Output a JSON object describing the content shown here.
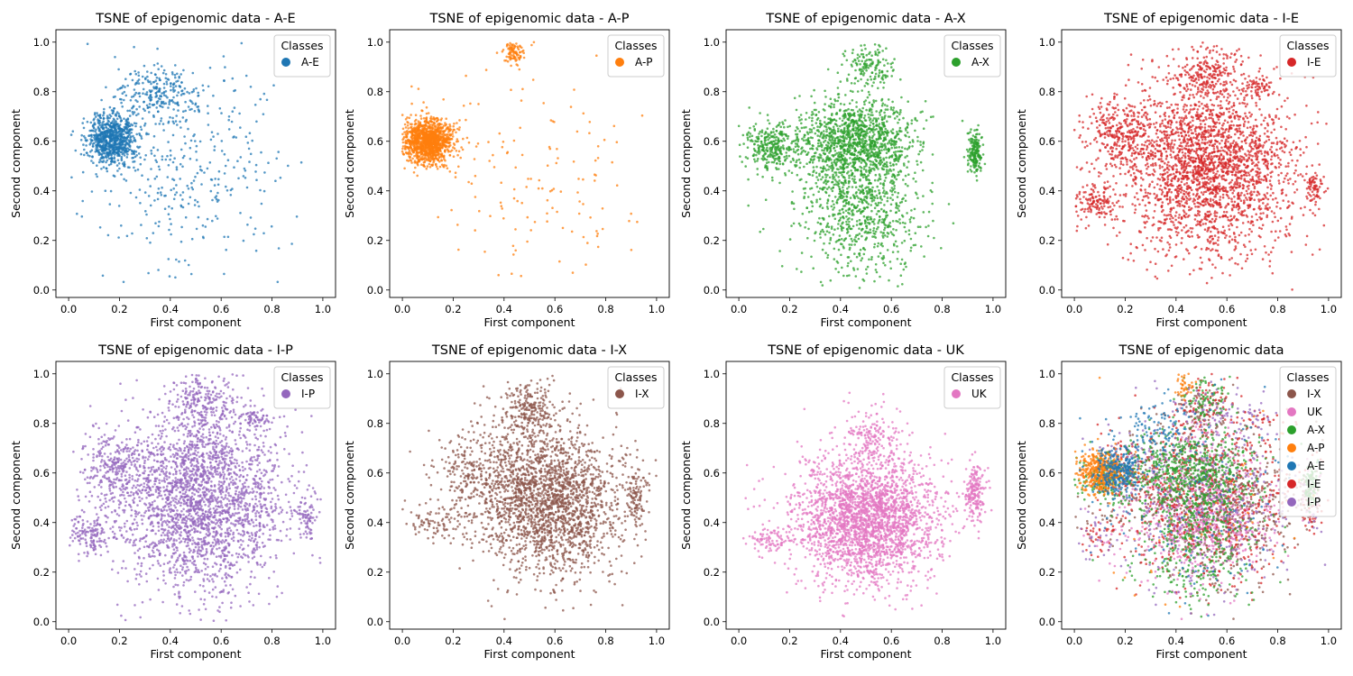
{
  "colors": {
    "A-E": "#1f77b4",
    "A-P": "#ff7f0e",
    "A-X": "#2ca02c",
    "I-E": "#d62728",
    "I-P": "#9467bd",
    "I-X": "#8c564b",
    "UK": "#e377c2"
  },
  "chart_data": [
    {
      "type": "scatter",
      "title": "TSNE of epigenomic data - A-E",
      "xlabel": "First component",
      "ylabel": "Second component",
      "xlim": [
        -0.05,
        1.05
      ],
      "ylim": [
        -0.03,
        1.05
      ],
      "xticks": [
        "0.0",
        "0.2",
        "0.4",
        "0.6",
        "0.8",
        "1.0"
      ],
      "yticks": [
        "0.0",
        "0.2",
        "0.4",
        "0.6",
        "0.8",
        "1.0"
      ],
      "legend": {
        "title": "Classes",
        "position": "top-right",
        "entries": [
          "A-E"
        ]
      },
      "series": [
        {
          "name": "A-E",
          "shape": "ae",
          "density": 1400
        }
      ]
    },
    {
      "type": "scatter",
      "title": "TSNE of epigenomic data - A-P",
      "xlabel": "First component",
      "ylabel": "Second component",
      "xlim": [
        -0.05,
        1.05
      ],
      "ylim": [
        -0.03,
        1.05
      ],
      "xticks": [
        "0.0",
        "0.2",
        "0.4",
        "0.6",
        "0.8",
        "1.0"
      ],
      "yticks": [
        "0.0",
        "0.2",
        "0.4",
        "0.6",
        "0.8",
        "1.0"
      ],
      "legend": {
        "title": "Classes",
        "position": "top-right",
        "entries": [
          "A-P"
        ]
      },
      "series": [
        {
          "name": "A-P",
          "shape": "ap",
          "density": 1500
        }
      ]
    },
    {
      "type": "scatter",
      "title": "TSNE of epigenomic data - A-X",
      "xlabel": "First component",
      "ylabel": "Second component",
      "xlim": [
        -0.05,
        1.05
      ],
      "ylim": [
        -0.03,
        1.05
      ],
      "xticks": [
        "0.0",
        "0.2",
        "0.4",
        "0.6",
        "0.8",
        "1.0"
      ],
      "yticks": [
        "0.0",
        "0.2",
        "0.4",
        "0.6",
        "0.8",
        "1.0"
      ],
      "legend": {
        "title": "Classes",
        "position": "top-right",
        "entries": [
          "A-X"
        ]
      },
      "series": [
        {
          "name": "A-X",
          "shape": "ax",
          "density": 2600
        }
      ]
    },
    {
      "type": "scatter",
      "title": "TSNE of epigenomic data - I-E",
      "xlabel": "First component",
      "ylabel": "Second component",
      "xlim": [
        -0.05,
        1.05
      ],
      "ylim": [
        -0.03,
        1.05
      ],
      "xticks": [
        "0.0",
        "0.2",
        "0.4",
        "0.6",
        "0.8",
        "1.0"
      ],
      "yticks": [
        "0.0",
        "0.2",
        "0.4",
        "0.6",
        "0.8",
        "1.0"
      ],
      "legend": {
        "title": "Classes",
        "position": "top-right",
        "entries": [
          "I-E"
        ]
      },
      "series": [
        {
          "name": "I-E",
          "shape": "full",
          "density": 3200
        }
      ]
    },
    {
      "type": "scatter",
      "title": "TSNE of epigenomic data - I-P",
      "xlabel": "First component",
      "ylabel": "Second component",
      "xlim": [
        -0.05,
        1.05
      ],
      "ylim": [
        -0.03,
        1.05
      ],
      "xticks": [
        "0.0",
        "0.2",
        "0.4",
        "0.6",
        "0.8",
        "1.0"
      ],
      "yticks": [
        "0.0",
        "0.2",
        "0.4",
        "0.6",
        "0.8",
        "1.0"
      ],
      "legend": {
        "title": "Classes",
        "position": "top-right",
        "entries": [
          "I-P"
        ]
      },
      "series": [
        {
          "name": "I-P",
          "shape": "full",
          "density": 3200
        }
      ]
    },
    {
      "type": "scatter",
      "title": "TSNE of epigenomic data - I-X",
      "xlabel": "First component",
      "ylabel": "Second component",
      "xlim": [
        -0.05,
        1.05
      ],
      "ylim": [
        -0.03,
        1.05
      ],
      "xticks": [
        "0.0",
        "0.2",
        "0.4",
        "0.6",
        "0.8",
        "1.0"
      ],
      "yticks": [
        "0.0",
        "0.2",
        "0.4",
        "0.6",
        "0.8",
        "1.0"
      ],
      "legend": {
        "title": "Classes",
        "position": "top-right",
        "entries": [
          "I-X"
        ]
      },
      "series": [
        {
          "name": "I-X",
          "shape": "ix",
          "density": 2800
        }
      ]
    },
    {
      "type": "scatter",
      "title": "TSNE of epigenomic data - UK",
      "xlabel": "First component",
      "ylabel": "Second component",
      "xlim": [
        -0.05,
        1.05
      ],
      "ylim": [
        -0.03,
        1.05
      ],
      "xticks": [
        "0.0",
        "0.2",
        "0.4",
        "0.6",
        "0.8",
        "1.0"
      ],
      "yticks": [
        "0.0",
        "0.2",
        "0.4",
        "0.6",
        "0.8",
        "1.0"
      ],
      "legend": {
        "title": "Classes",
        "position": "top-right",
        "entries": [
          "UK"
        ]
      },
      "series": [
        {
          "name": "UK",
          "shape": "uk",
          "density": 3000
        }
      ]
    },
    {
      "type": "scatter",
      "title": "TSNE of epigenomic data",
      "xlabel": "First component",
      "ylabel": "Second component",
      "xlim": [
        -0.05,
        1.05
      ],
      "ylim": [
        -0.03,
        1.05
      ],
      "xticks": [
        "0.0",
        "0.2",
        "0.4",
        "0.6",
        "0.8",
        "1.0"
      ],
      "yticks": [
        "0.0",
        "0.2",
        "0.4",
        "0.6",
        "0.8",
        "1.0"
      ],
      "legend": {
        "title": "Classes",
        "position": "top-right",
        "entries": [
          "I-X",
          "UK",
          "A-X",
          "A-P",
          "A-E",
          "I-E",
          "I-P"
        ]
      },
      "series": [
        {
          "name": "I-X",
          "shape": "ix",
          "density": 900
        },
        {
          "name": "UK",
          "shape": "uk",
          "density": 700
        },
        {
          "name": "I-E",
          "shape": "full",
          "density": 900
        },
        {
          "name": "I-P",
          "shape": "full",
          "density": 600
        },
        {
          "name": "A-X",
          "shape": "ax",
          "density": 1300
        },
        {
          "name": "A-P",
          "shape": "ap",
          "density": 500
        },
        {
          "name": "A-E",
          "shape": "ae",
          "density": 500
        }
      ]
    }
  ]
}
